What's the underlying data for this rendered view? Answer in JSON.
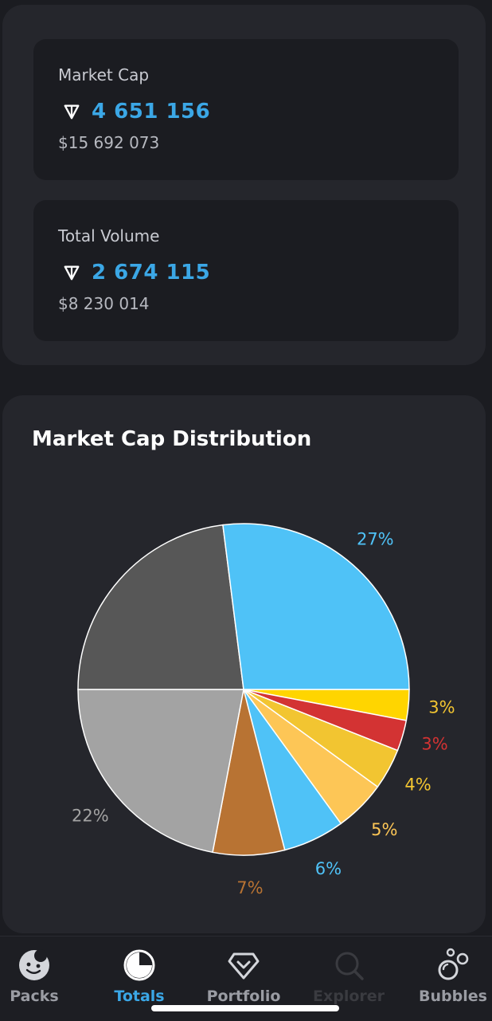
{
  "stats": {
    "market_cap": {
      "label": "Market Cap",
      "ton_value": "4 651 156",
      "usd_value": "$15 692 073"
    },
    "total_volume": {
      "label": "Total Volume",
      "ton_value": "2 674 115",
      "usd_value": "$8 230 014"
    }
  },
  "chart": {
    "title": "Market Cap Distribution"
  },
  "chart_data": {
    "type": "pie",
    "title": "Market Cap Distribution",
    "start_angle_deg": 0,
    "direction": "clockwise",
    "slices": [
      {
        "value": 3,
        "label": "3%",
        "color": "#ffd500",
        "label_color": "#f2c531"
      },
      {
        "value": 3,
        "label": "3%",
        "color": "#d33333",
        "label_color": "#d33333"
      },
      {
        "value": 4,
        "label": "4%",
        "color": "#f2c531",
        "label_color": "#f2c531"
      },
      {
        "value": 5,
        "label": "5%",
        "color": "#fdc656",
        "label_color": "#fdc656"
      },
      {
        "value": 6,
        "label": "6%",
        "color": "#4fc2f7",
        "label_color": "#4fc2f7"
      },
      {
        "value": 7,
        "label": "7%",
        "color": "#b87333",
        "label_color": "#b87333"
      },
      {
        "value": 22,
        "label": "22%",
        "color": "#a3a3a3",
        "label_color": "#a3a3a3"
      },
      {
        "value": 23,
        "label": "",
        "color": "#575757",
        "label_color": "#575757"
      },
      {
        "value": 27,
        "label": "27%",
        "color": "#4fc2f7",
        "label_color": "#4fc2f7"
      }
    ]
  },
  "tabs": [
    {
      "label": "Packs",
      "icon": "packs-icon",
      "state": "default"
    },
    {
      "label": "Totals",
      "icon": "totals-icon",
      "state": "active"
    },
    {
      "label": "Portfolio",
      "icon": "portfolio-icon",
      "state": "default"
    },
    {
      "label": "Explorer",
      "icon": "explorer-icon",
      "state": "disabled"
    },
    {
      "label": "Bubbles",
      "icon": "bubbles-icon",
      "state": "default"
    }
  ]
}
